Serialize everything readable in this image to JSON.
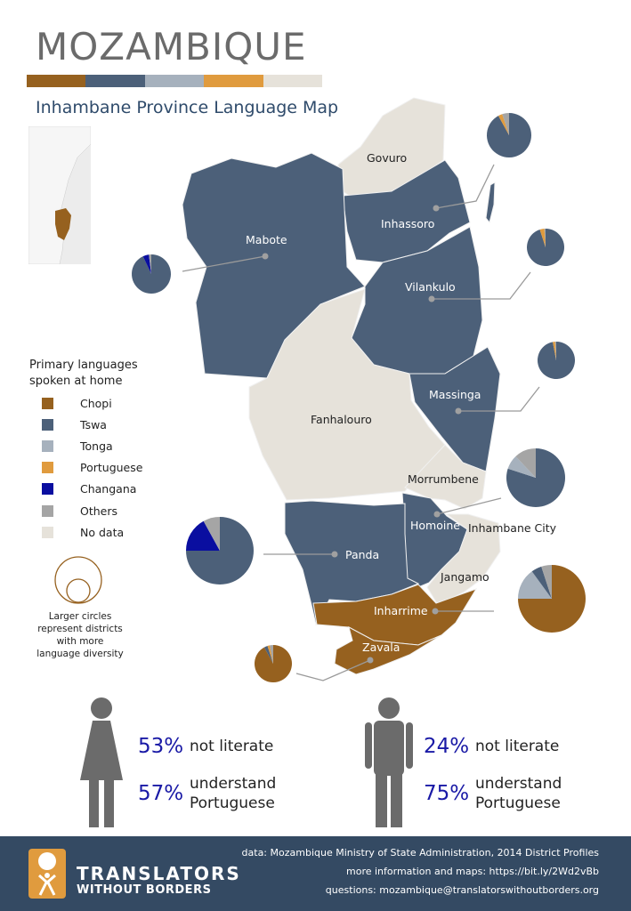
{
  "header": {
    "title": "MOZAMBIQUE",
    "subtitle": "Inhambane Province Language Map",
    "color_bar": [
      "#96611f",
      "#4c6079",
      "#a6b1bd",
      "#e09b3e",
      "#e6e2da"
    ]
  },
  "legend": {
    "title_line1": "Primary languages",
    "title_line2": "spoken at home",
    "items": [
      {
        "label": "Chopi",
        "color": "#96611f"
      },
      {
        "label": "Tswa",
        "color": "#4c6079"
      },
      {
        "label": "Tonga",
        "color": "#a6b1bd"
      },
      {
        "label": "Portuguese",
        "color": "#e09b3e"
      },
      {
        "label": "Changana",
        "color": "#0a0ea0"
      },
      {
        "label": "Others",
        "color": "#a5a5a5"
      },
      {
        "label": "No data",
        "color": "#e6e2da"
      }
    ],
    "size_note": "Larger circles represent districts with more language diversity"
  },
  "districts": {
    "govuro": "Govuro",
    "inhassoro": "Inhassoro",
    "mabote": "Mabote",
    "vilankulo": "Vilankulo",
    "massinga": "Massinga",
    "fanhalouro": "Fanhalouro",
    "morrumbene": "Morrumbene",
    "homoine": "Homoine",
    "inhambane_city": "Inhambane City",
    "panda": "Panda",
    "jangamo": "Jangamo",
    "inharrime": "Inharrime",
    "zavala": "Zavala"
  },
  "pies": {
    "inhassoro": [
      [
        "Tswa",
        92
      ],
      [
        "Portuguese",
        3
      ],
      [
        "Others",
        5
      ]
    ],
    "vilankulo": [
      [
        "Tswa",
        95
      ],
      [
        "Portuguese",
        4
      ],
      [
        "Others",
        1
      ]
    ],
    "massinga": [
      [
        "Tswa",
        97
      ],
      [
        "Portuguese",
        2
      ],
      [
        "Others",
        1
      ]
    ],
    "mabote": [
      [
        "Tswa",
        93
      ],
      [
        "Changana",
        5
      ],
      [
        "Others",
        2
      ]
    ],
    "homoine": [
      [
        "Tswa",
        80
      ],
      [
        "Tonga",
        8
      ],
      [
        "Others",
        12
      ]
    ],
    "panda": [
      [
        "Tswa",
        75
      ],
      [
        "Changana",
        17
      ],
      [
        "Others",
        8
      ]
    ],
    "inharrime": [
      [
        "Chopi",
        75
      ],
      [
        "Tonga",
        15
      ],
      [
        "Tswa",
        5
      ],
      [
        "Others",
        5
      ]
    ],
    "zavala": [
      [
        "Chopi",
        92
      ],
      [
        "Tswa",
        3
      ],
      [
        "Portuguese",
        2
      ],
      [
        "Others",
        3
      ]
    ]
  },
  "stats": {
    "women": {
      "not_literate_pct": "53%",
      "not_literate_label": "not literate",
      "portuguese_pct": "57%",
      "portuguese_label_1": "understand",
      "portuguese_label_2": "Portuguese"
    },
    "men": {
      "not_literate_pct": "24%",
      "not_literate_label": "not literate",
      "portuguese_pct": "75%",
      "portuguese_label_1": "understand",
      "portuguese_label_2": "Portuguese"
    }
  },
  "footer": {
    "org_line1": "TRANSLATORS",
    "org_line2": "WITHOUT BORDERS",
    "data_source": "data: Mozambique Ministry of State Administration, 2014 District Profiles",
    "more_info": "more information and maps: https://bit.ly/2Wd2vBb",
    "questions": "questions: mozambique@translatorswithoutborders.org"
  }
}
